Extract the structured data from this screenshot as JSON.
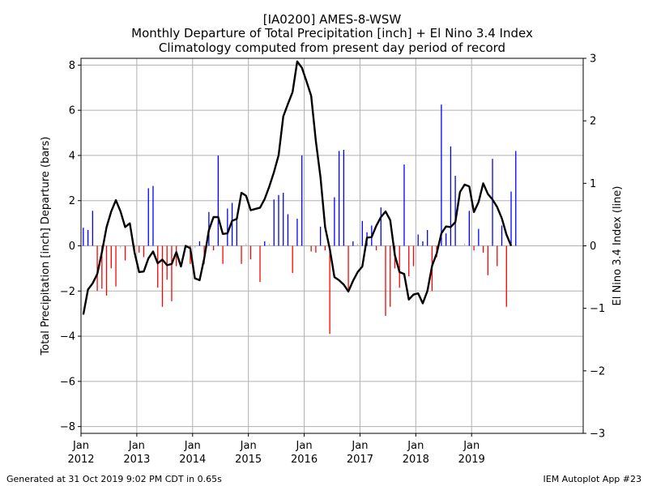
{
  "chart_data": {
    "type": "bar",
    "title": [
      "[IA0200] AMES-8-WSW",
      "Monthly Departure of Total Precipitation [inch] + El Nino 3.4 Index",
      "Climatology computed from present day period of record"
    ],
    "ylabel": "Total Precipitation [inch] Departure (bars)",
    "y2label": "El Nino 3.4 Index (line)",
    "ylim": [
      -8.3,
      8.3
    ],
    "y2lim": [
      -3,
      3
    ],
    "yticks": [
      "8",
      "6",
      "4",
      "2",
      "0",
      "−2",
      "−4",
      "−6",
      "−8"
    ],
    "y2ticks": [
      "3",
      "2",
      "1",
      "0",
      "−1",
      "−2",
      "−3"
    ],
    "xticks": [
      {
        "month": "Jan",
        "year": "2012"
      },
      {
        "month": "Jan",
        "year": "2013"
      },
      {
        "month": "Jan",
        "year": "2014"
      },
      {
        "month": "Jan",
        "year": "2015"
      },
      {
        "month": "Jan",
        "year": "2016"
      },
      {
        "month": "Jan",
        "year": "2017"
      },
      {
        "month": "Jan",
        "year": "2018"
      },
      {
        "month": "Jan",
        "year": "2019"
      }
    ],
    "x_start": "2012-01",
    "grid": true,
    "colors": {
      "positive": "#0000ff",
      "negative": "#ff0000",
      "small": "#c0c0c0",
      "line": "#000000",
      "grid": "#b0b0b0"
    },
    "precip_departure": [
      0.8,
      0.7,
      1.55,
      -2.0,
      -1.9,
      -2.2,
      -1.0,
      -1.8,
      -0.1,
      -0.65,
      0.0,
      -0.2,
      -0.3,
      -0.5,
      2.55,
      2.65,
      -1.85,
      -2.7,
      -1.5,
      -2.45,
      -0.9,
      0.0,
      -0.05,
      -0.8,
      -0.1,
      0.2,
      -0.8,
      1.5,
      -0.2,
      4.0,
      -0.8,
      1.65,
      1.9,
      1.2,
      -0.8,
      0.1,
      -0.6,
      0.0,
      -1.6,
      0.2,
      0.1,
      2.05,
      2.25,
      2.35,
      1.4,
      -1.2,
      1.2,
      4.0,
      0.0,
      -0.25,
      -0.3,
      0.85,
      -0.2,
      -3.9,
      2.15,
      4.2,
      4.25,
      -1.9,
      0.2,
      0.1,
      1.1,
      0.6,
      0.9,
      -0.2,
      1.7,
      -3.1,
      -2.7,
      -1.0,
      -1.85,
      3.6,
      -1.35,
      -0.9,
      0.5,
      0.2,
      0.7,
      -2.0,
      -0.5,
      6.25,
      0.55,
      4.4,
      3.1,
      0.0,
      0.1,
      1.55,
      -0.2,
      0.75,
      -0.3,
      -1.3,
      3.85,
      -0.9,
      0.9,
      -2.7,
      2.4,
      4.2
    ],
    "nino34_index": [
      -1.1,
      -0.7,
      -0.6,
      -0.45,
      -0.1,
      0.3,
      0.55,
      0.73,
      0.55,
      0.3,
      0.36,
      -0.1,
      -0.42,
      -0.41,
      -0.2,
      -0.09,
      -0.28,
      -0.22,
      -0.31,
      -0.29,
      -0.1,
      -0.33,
      0.0,
      -0.04,
      -0.52,
      -0.55,
      -0.2,
      0.25,
      0.46,
      0.46,
      0.19,
      0.2,
      0.4,
      0.43,
      0.85,
      0.8,
      0.57,
      0.59,
      0.61,
      0.75,
      0.95,
      1.18,
      1.45,
      2.07,
      2.27,
      2.46,
      2.95,
      2.85,
      2.63,
      2.4,
      1.68,
      1.1,
      0.3,
      -0.05,
      -0.5,
      -0.55,
      -0.62,
      -0.73,
      -0.56,
      -0.42,
      -0.33,
      0.13,
      0.14,
      0.32,
      0.46,
      0.55,
      0.41,
      -0.15,
      -0.42,
      -0.45,
      -0.86,
      -0.78,
      -0.76,
      -0.92,
      -0.72,
      -0.32,
      -0.12,
      0.2,
      0.31,
      0.3,
      0.38,
      0.86,
      0.98,
      0.95,
      0.54,
      0.7,
      1.0,
      0.83,
      0.74,
      0.62,
      0.44,
      0.18,
      0.0
    ]
  },
  "footer": {
    "left": "Generated at 31 Oct 2019 9:02 PM CDT in 0.65s",
    "right": "IEM Autoplot App #23"
  }
}
